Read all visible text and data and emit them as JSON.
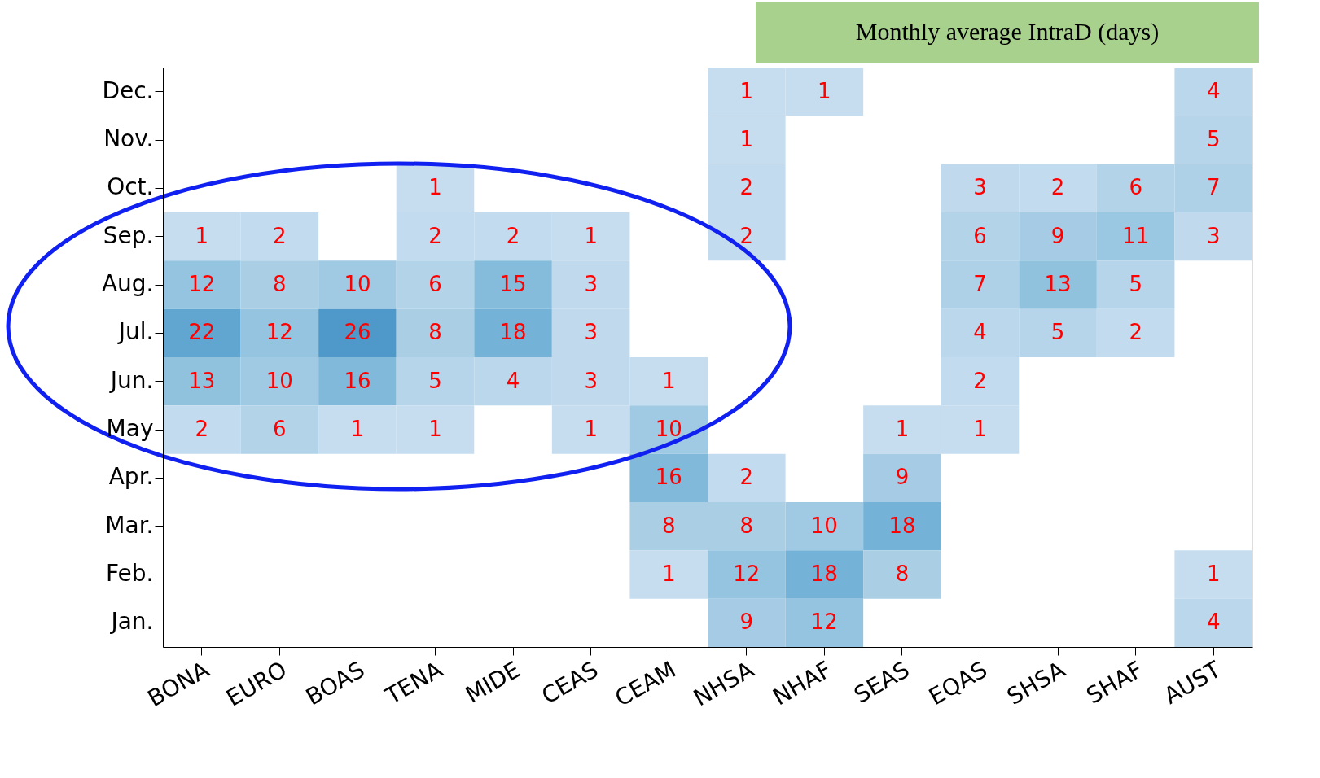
{
  "chart_data": {
    "type": "heatmap",
    "title": "Monthly average IntraD (days)",
    "categories": [
      "BONA",
      "EURO",
      "BOAS",
      "TENA",
      "MIDE",
      "CEAS",
      "CEAM",
      "NHSA",
      "NHAF",
      "SEAS",
      "EQAS",
      "SHSA",
      "SHAF",
      "AUST"
    ],
    "y_categories": [
      "Dec.",
      "Nov.",
      "Oct.",
      "Sep.",
      "Aug.",
      "Jul.",
      "Jun.",
      "May",
      "Apr.",
      "Mar.",
      "Feb.",
      "Jan."
    ],
    "cells": [
      [
        null,
        null,
        null,
        null,
        null,
        null,
        null,
        1,
        1,
        null,
        null,
        null,
        null,
        4
      ],
      [
        null,
        null,
        null,
        null,
        null,
        null,
        null,
        1,
        null,
        null,
        null,
        null,
        null,
        5
      ],
      [
        null,
        null,
        null,
        1,
        null,
        null,
        null,
        2,
        null,
        null,
        3,
        2,
        6,
        7
      ],
      [
        1,
        2,
        null,
        2,
        2,
        1,
        null,
        2,
        null,
        null,
        6,
        9,
        11,
        3
      ],
      [
        12,
        8,
        10,
        6,
        15,
        3,
        null,
        null,
        null,
        null,
        7,
        13,
        5,
        null
      ],
      [
        22,
        12,
        26,
        8,
        18,
        3,
        null,
        null,
        null,
        null,
        4,
        5,
        2,
        null
      ],
      [
        13,
        10,
        16,
        5,
        4,
        3,
        1,
        null,
        null,
        null,
        2,
        null,
        null,
        null
      ],
      [
        2,
        6,
        1,
        1,
        null,
        1,
        10,
        null,
        null,
        1,
        1,
        null,
        null,
        null
      ],
      [
        null,
        null,
        null,
        null,
        null,
        null,
        16,
        2,
        null,
        9,
        null,
        null,
        null,
        null
      ],
      [
        null,
        null,
        null,
        null,
        null,
        null,
        8,
        8,
        10,
        18,
        null,
        null,
        null,
        null
      ],
      [
        null,
        null,
        null,
        null,
        null,
        null,
        1,
        12,
        18,
        8,
        null,
        null,
        null,
        1
      ],
      [
        null,
        null,
        null,
        null,
        null,
        null,
        null,
        9,
        12,
        null,
        null,
        null,
        null,
        4
      ]
    ],
    "data_labels": true
  }
}
